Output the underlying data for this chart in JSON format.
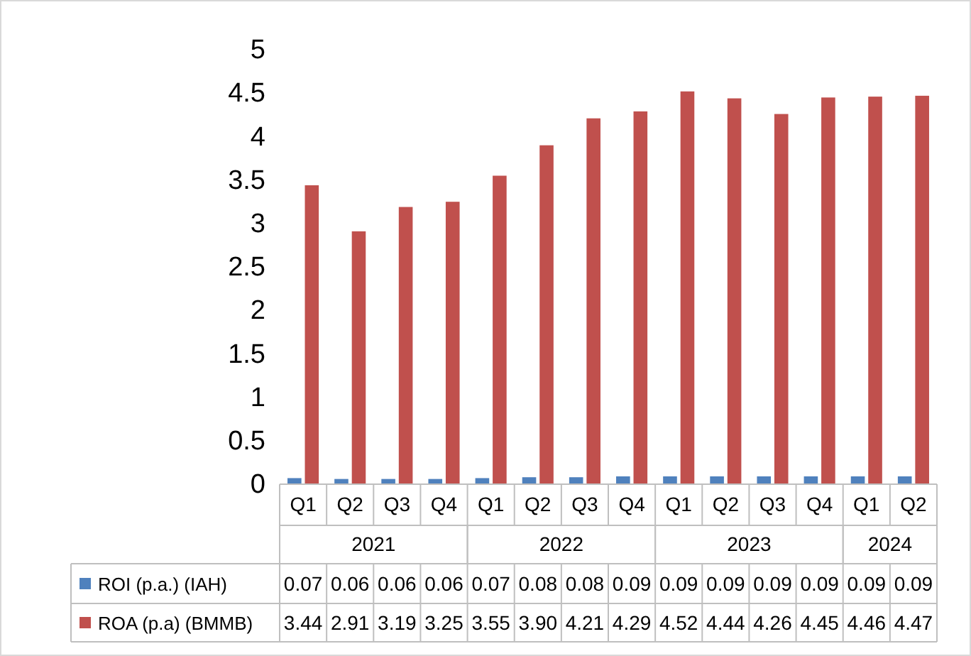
{
  "chart_data": {
    "type": "bar",
    "categories": [
      "Q1",
      "Q2",
      "Q3",
      "Q4",
      "Q1",
      "Q2",
      "Q3",
      "Q4",
      "Q1",
      "Q2",
      "Q3",
      "Q4",
      "Q1",
      "Q2"
    ],
    "series": [
      {
        "name": "ROI (p.a.) (IAH)",
        "color": "#4f81bd",
        "values": [
          0.07,
          0.06,
          0.06,
          0.06,
          0.07,
          0.08,
          0.08,
          0.09,
          0.09,
          0.09,
          0.09,
          0.09,
          0.09,
          0.09
        ],
        "value_labels": [
          "0.07",
          "0.06",
          "0.06",
          "0.06",
          "0.07",
          "0.08",
          "0.08",
          "0.09",
          "0.09",
          "0.09",
          "0.09",
          "0.09",
          "0.09",
          "0.09"
        ]
      },
      {
        "name": "ROA (p.a) (BMMB)",
        "color": "#c0504d",
        "values": [
          3.44,
          2.91,
          3.19,
          3.25,
          3.55,
          3.9,
          4.21,
          4.29,
          4.52,
          4.44,
          4.26,
          4.45,
          4.46,
          4.47
        ],
        "value_labels": [
          "3.44",
          "2.91",
          "3.19",
          "3.25",
          "3.55",
          "3.90",
          "4.21",
          "4.29",
          "4.52",
          "4.44",
          "4.26",
          "4.45",
          "4.46",
          "4.47"
        ]
      }
    ],
    "annotations": [
      "2021",
      "2022",
      "2023",
      "2024"
    ],
    "ylim": [
      0,
      5
    ],
    "yticks": [
      0,
      0.5,
      1,
      1.5,
      2,
      2.5,
      3,
      3.5,
      4,
      4.5,
      5
    ],
    "legend": "bottom"
  }
}
